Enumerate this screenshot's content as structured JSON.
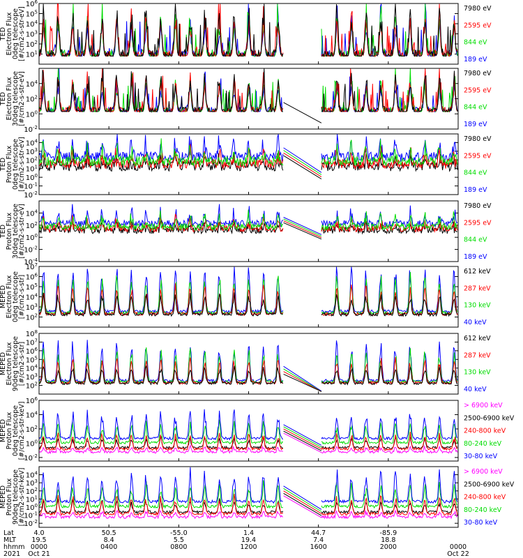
{
  "chart_data": {
    "type": "line",
    "colors": {
      "black": "#000000",
      "red": "#ff0000",
      "green": "#00dd00",
      "blue": "#0000ff",
      "magenta": "#ff00ff"
    },
    "panels": [
      {
        "ylabel": [
          "TED",
          "Electron Flux",
          "0deg telescope",
          "[#/cm2-s-str-eV]"
        ],
        "yticks": [
          "10^1",
          "10^2",
          "10^3",
          "10^4",
          "10^5",
          "10^6"
        ],
        "yrange_exp": [
          0,
          6
        ],
        "tick_exps": [
          1,
          2,
          3,
          4,
          5,
          6
        ],
        "style": "spiky",
        "base_exp": 0.8,
        "gap_lines": false,
        "legend": [
          {
            "label": "7980 eV",
            "color": "black"
          },
          {
            "label": "2595 eV",
            "color": "red"
          },
          {
            "label": "844 eV",
            "color": "green"
          },
          {
            "label": "189 eV",
            "color": "blue"
          }
        ]
      },
      {
        "ylabel": [
          "TED",
          "Electron Flux",
          "30deg telescope",
          "[#/cm2-s-str-eV]"
        ],
        "yticks": [
          "10^-2",
          "10^0",
          "10^2",
          "10^4"
        ],
        "yrange_exp": [
          -2,
          6
        ],
        "tick_exps": [
          -2,
          0,
          2,
          4
        ],
        "style": "spiky",
        "base_exp": 0.3,
        "gap_lines": true,
        "legend": [
          {
            "label": "7980 eV",
            "color": "black"
          },
          {
            "label": "2595 eV",
            "color": "red"
          },
          {
            "label": "844 eV",
            "color": "green"
          },
          {
            "label": "189 eV",
            "color": "blue"
          }
        ]
      },
      {
        "ylabel": [
          "TED",
          "Proton Flux",
          "0deg telescope",
          "[#/cm2-s-str-eV]"
        ],
        "yticks": [
          "10^-2",
          "10^-1",
          "10^0",
          "10^1",
          "10^2",
          "10^3",
          "10^4"
        ],
        "yrange_exp": [
          -2,
          5
        ],
        "tick_exps": [
          -2,
          -1,
          0,
          1,
          2,
          3,
          4
        ],
        "style": "band",
        "base_exp": 1.3,
        "gap_lines": true,
        "legend": [
          {
            "label": "7980 eV",
            "color": "black"
          },
          {
            "label": "2595 eV",
            "color": "red"
          },
          {
            "label": "844 eV",
            "color": "green"
          },
          {
            "label": "189 eV",
            "color": "blue"
          }
        ]
      },
      {
        "ylabel": [
          "TED",
          "Proton Flux",
          "30deg telescope",
          "[#/cm2-s-str-eV]"
        ],
        "yticks": [
          "10^-4",
          "10^-2",
          "10^0",
          "10^2",
          "10^4"
        ],
        "yrange_exp": [
          -4,
          6
        ],
        "tick_exps": [
          -4,
          -2,
          0,
          2,
          4
        ],
        "style": "band",
        "base_exp": 1.2,
        "gap_lines": true,
        "legend": [
          {
            "label": "7980 eV",
            "color": "black"
          },
          {
            "label": "2595 eV",
            "color": "red"
          },
          {
            "label": "844 eV",
            "color": "green"
          },
          {
            "label": "189 eV",
            "color": "blue"
          }
        ]
      },
      {
        "ylabel": [
          "MEPED",
          "Electron Flux",
          "0deg telescope",
          "[#/cm2-s-str]"
        ],
        "yticks": [
          "10^2",
          "10^3",
          "10^4",
          "10^5",
          "10^6",
          "10^7"
        ],
        "yrange_exp": [
          1,
          7
        ],
        "tick_exps": [
          2,
          3,
          4,
          5,
          6,
          7
        ],
        "style": "meped_e",
        "base_exp": 2.1,
        "gap_lines": false,
        "legend": [
          {
            "label": "612 keV",
            "color": "black"
          },
          {
            "label": "287 keV",
            "color": "red"
          },
          {
            "label": "130 keV",
            "color": "green"
          },
          {
            "label": "40 keV",
            "color": "blue"
          }
        ]
      },
      {
        "ylabel": [
          "MEPED",
          "Electron Flux",
          "90deg telescope",
          "[#/cm2-s-str]"
        ],
        "yticks": [
          "10^2",
          "10^3",
          "10^4",
          "10^5",
          "10^6",
          "10^7",
          "10^8"
        ],
        "yrange_exp": [
          1,
          8
        ],
        "tick_exps": [
          2,
          3,
          4,
          5,
          6,
          7,
          8
        ],
        "style": "meped_e",
        "base_exp": 2.1,
        "gap_lines": true,
        "legend": [
          {
            "label": "612 keV",
            "color": "black"
          },
          {
            "label": "287 keV",
            "color": "red"
          },
          {
            "label": "130 keV",
            "color": "green"
          },
          {
            "label": "40 keV",
            "color": "blue"
          }
        ]
      },
      {
        "ylabel": [
          "MEPED",
          "Proton Flux",
          "0deg telescope",
          "[#/cm2-s-str-keV]"
        ],
        "yticks": [
          "10^-2",
          "10^0",
          "10^2",
          "10^4",
          "10^6"
        ],
        "yrange_exp": [
          -2.5,
          6
        ],
        "tick_exps": [
          -2,
          0,
          2,
          4,
          6
        ],
        "style": "meped_p",
        "base_exp": 0.2,
        "gap_lines": true,
        "legend": [
          {
            "label": "> 6900 keV",
            "color": "magenta"
          },
          {
            "label": "2500-6900 keV",
            "color": "black"
          },
          {
            "label": "240-800 keV",
            "color": "red"
          },
          {
            "label": "80-240 keV",
            "color": "green"
          },
          {
            "label": "30-80 keV",
            "color": "blue"
          }
        ]
      },
      {
        "ylabel": [
          "MEPED",
          "Proton Flux",
          "90deg telescope",
          "[#/cm2-s-str-keV]"
        ],
        "yticks": [
          "10^-2",
          "10^-1",
          "10^0",
          "10^1",
          "10^2",
          "10^3",
          "10^4"
        ],
        "yrange_exp": [
          -2.5,
          5
        ],
        "tick_exps": [
          -2,
          -1,
          0,
          1,
          2,
          3,
          4
        ],
        "style": "meped_p",
        "base_exp": 0.2,
        "gap_lines": true,
        "legend": [
          {
            "label": "> 6900 keV",
            "color": "magenta"
          },
          {
            "label": "2500-6900 keV",
            "color": "black"
          },
          {
            "label": "240-800 keV",
            "color": "red"
          },
          {
            "label": "80-240 keV",
            "color": "green"
          },
          {
            "label": "30-80 keV",
            "color": "blue"
          }
        ]
      }
    ],
    "x_axis": {
      "row_labels": [
        "Lat",
        "MLT",
        "hhmm",
        "2021"
      ],
      "data_gap_hhmm": [
        "1400",
        "1610"
      ],
      "ticks": [
        {
          "lat": "4.0",
          "mlt": "19.5",
          "hhmm": "0000",
          "date": "Oct 21"
        },
        {
          "lat": "50.5",
          "mlt": "8.4",
          "hhmm": "0400",
          "date": ""
        },
        {
          "lat": "-55.0",
          "mlt": "5.5",
          "hhmm": "0800",
          "date": ""
        },
        {
          "lat": "1.4",
          "mlt": "19.4",
          "hhmm": "1200",
          "date": ""
        },
        {
          "lat": "44.7",
          "mlt": "7.4",
          "hhmm": "1600",
          "date": ""
        },
        {
          "lat": "-85.9",
          "mlt": "18.8",
          "hhmm": "2000",
          "date": ""
        },
        {
          "lat": "",
          "mlt": "",
          "hhmm": "0000",
          "date": "Oct 22"
        }
      ]
    }
  }
}
